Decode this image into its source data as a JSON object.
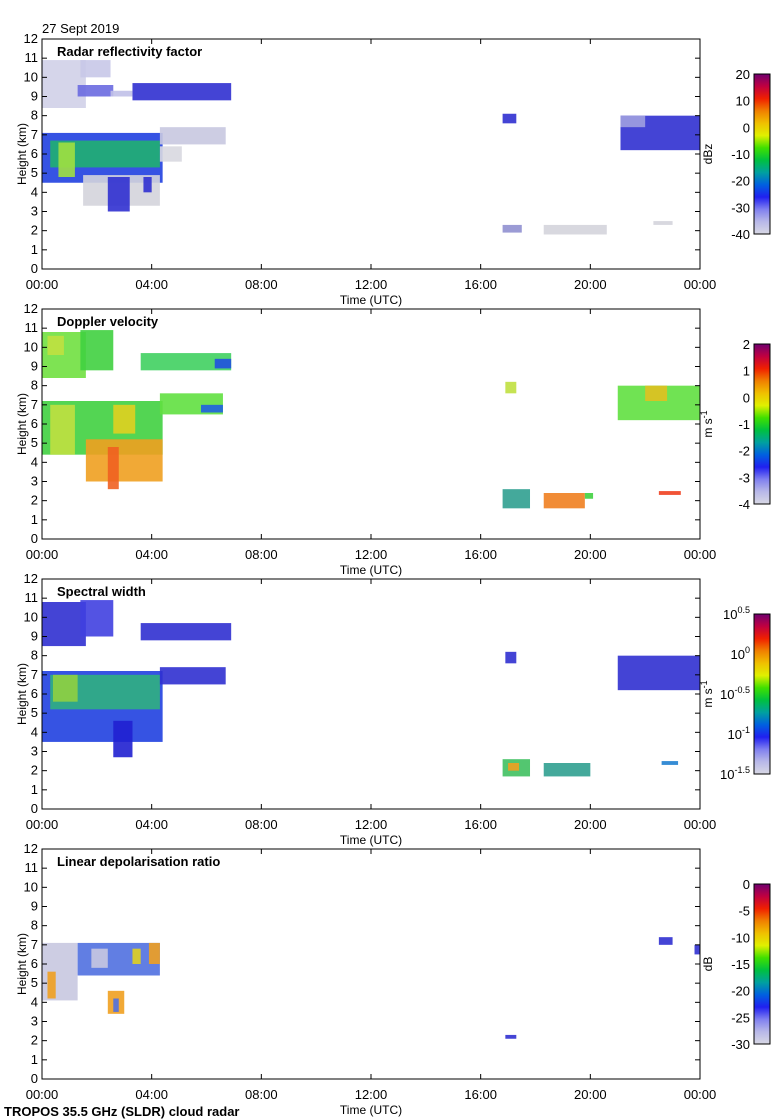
{
  "date": "27 Sept 2019",
  "footer": "TROPOS 35.5 GHz (SLDR) cloud radar",
  "colormap": [
    "#d8d8e4",
    "#b8b8e8",
    "#8080f0",
    "#2020f0",
    "#0060e0",
    "#00a0a0",
    "#00c040",
    "#40e000",
    "#e0f000",
    "#f0c000",
    "#f08000",
    "#f02000",
    "#c00040",
    "#700070"
  ],
  "chart_data": [
    {
      "type": "heatmap",
      "title": "Radar reflectivity factor",
      "xlabel": "Time (UTC)",
      "ylabel": "Height (km)",
      "xlim": [
        0,
        24
      ],
      "ylim": [
        0,
        12
      ],
      "xticks": [
        "00:00",
        "04:00",
        "08:00",
        "12:00",
        "16:00",
        "20:00",
        "00:00"
      ],
      "yticks": [
        "0",
        "1",
        "2",
        "3",
        "4",
        "5",
        "6",
        "7",
        "8",
        "9",
        "10",
        "11",
        "12"
      ],
      "colorbar": {
        "label": {
          "base": "dBz",
          "exp": ""
        },
        "range": [
          -40,
          20
        ],
        "ticks": [
          "20",
          "10",
          "0",
          "-10",
          "-20",
          "-30",
          "-40"
        ]
      },
      "echo_regions": [
        [
          0,
          1.6,
          8.4,
          10.9,
          "#d0d0e8"
        ],
        [
          1.4,
          2.5,
          10,
          10.9,
          "#c8c8e8"
        ],
        [
          1.3,
          2.6,
          9,
          9.6,
          "#6a6ae0"
        ],
        [
          3.3,
          6.9,
          8.8,
          9.7,
          "#3030d0"
        ],
        [
          2.5,
          3.3,
          9,
          9.3,
          "#c0c0e8"
        ],
        [
          0,
          4.4,
          4.5,
          7.1,
          "#2040e0"
        ],
        [
          0.3,
          4.3,
          5.3,
          6.7,
          "#20b070"
        ],
        [
          0.6,
          1.2,
          4.8,
          6.6,
          "#a0e040"
        ],
        [
          1.5,
          4.3,
          3.3,
          4.9,
          "#d4d4dc"
        ],
        [
          2.4,
          3.2,
          3.0,
          4.8,
          "#3030d0"
        ],
        [
          3.7,
          4.0,
          4,
          4.8,
          "#3030d0"
        ],
        [
          4.3,
          6.7,
          6.5,
          7.4,
          "#c8c8e0"
        ],
        [
          4.3,
          5.1,
          5.6,
          6.4,
          "#d8d8e0"
        ],
        [
          16.8,
          17.3,
          7.6,
          8.1,
          "#3030d0"
        ],
        [
          16.8,
          17.5,
          1.9,
          2.3,
          "#9090d0"
        ],
        [
          18.3,
          20.6,
          1.8,
          2.3,
          "#d4d4dc"
        ],
        [
          21.1,
          24,
          6.2,
          8,
          "#3030d0"
        ],
        [
          21.1,
          22,
          7.4,
          8,
          "#a0a0e0"
        ],
        [
          22.3,
          23,
          2.3,
          2.5,
          "#d4d4dc"
        ]
      ]
    },
    {
      "type": "heatmap",
      "title": "Doppler velocity",
      "xlabel": "Time (UTC)",
      "ylabel": "Height (km)",
      "xlim": [
        0,
        24
      ],
      "ylim": [
        0,
        12
      ],
      "xticks": [
        "00:00",
        "04:00",
        "08:00",
        "12:00",
        "16:00",
        "20:00",
        "00:00"
      ],
      "yticks": [
        "0",
        "1",
        "2",
        "3",
        "4",
        "5",
        "6",
        "7",
        "8",
        "9",
        "10",
        "11",
        "12"
      ],
      "colorbar": {
        "label": {
          "base": "m s",
          "exp": "-1"
        },
        "range": [
          -4,
          2
        ],
        "ticks": [
          "2",
          "1",
          "0",
          "-1",
          "-2",
          "-3",
          "-4"
        ]
      },
      "echo_regions": [
        [
          0,
          1.6,
          8.4,
          10.8,
          "#70e040"
        ],
        [
          0.2,
          0.8,
          9.6,
          10.6,
          "#c0e040"
        ],
        [
          1.4,
          2.6,
          8.8,
          10.9,
          "#40d040"
        ],
        [
          3.6,
          6.9,
          8.8,
          9.7,
          "#40d060"
        ],
        [
          6.3,
          6.9,
          8.9,
          9.4,
          "#2050e0"
        ],
        [
          0,
          4.4,
          4.4,
          7.2,
          "#40d040"
        ],
        [
          0.3,
          1.2,
          4.4,
          7.0,
          "#c0e040"
        ],
        [
          2.6,
          3.4,
          5.5,
          7.0,
          "#e0d020"
        ],
        [
          1.6,
          4.4,
          3.0,
          5.2,
          "#f0a020"
        ],
        [
          2.4,
          2.8,
          2.6,
          4.8,
          "#f06020"
        ],
        [
          4.3,
          6.6,
          6.5,
          7.6,
          "#60e040"
        ],
        [
          5.8,
          6.6,
          6.6,
          7.0,
          "#2060e0"
        ],
        [
          16.9,
          17.3,
          7.6,
          8.2,
          "#c0e040"
        ],
        [
          16.8,
          17.8,
          1.6,
          2.6,
          "#30a090"
        ],
        [
          18.3,
          19.8,
          1.6,
          2.4,
          "#f08020"
        ],
        [
          19.8,
          20.1,
          2.1,
          2.4,
          "#40d040"
        ],
        [
          21.0,
          24,
          6.2,
          8.0,
          "#60e040"
        ],
        [
          22.0,
          22.8,
          7.2,
          8.0,
          "#e0c020"
        ],
        [
          22.5,
          23.3,
          2.3,
          2.5,
          "#f04020"
        ]
      ]
    },
    {
      "type": "heatmap",
      "title": "Spectral width",
      "xlabel": "Time (UTC)",
      "ylabel": "Height (km)",
      "xlim": [
        0,
        24
      ],
      "ylim": [
        0,
        12
      ],
      "xticks": [
        "00:00",
        "04:00",
        "08:00",
        "12:00",
        "16:00",
        "20:00",
        "00:00"
      ],
      "yticks": [
        "0",
        "1",
        "2",
        "3",
        "4",
        "5",
        "6",
        "7",
        "8",
        "9",
        "10",
        "11",
        "12"
      ],
      "colorbar": {
        "label": {
          "base": "m s",
          "exp": "-1"
        },
        "range": [
          -1.5,
          0.5
        ],
        "ticks": [
          {
            "base": "10",
            "exp": "0.5"
          },
          {
            "base": "10",
            "exp": "0"
          },
          {
            "base": "10",
            "exp": "-0.5"
          },
          {
            "base": "10",
            "exp": "-1"
          },
          {
            "base": "10",
            "exp": "-1.5"
          }
        ]
      },
      "echo_regions": [
        [
          0,
          1.6,
          8.5,
          10.8,
          "#3030d0"
        ],
        [
          1.4,
          2.6,
          9,
          10.9,
          "#4040e0"
        ],
        [
          3.6,
          6.9,
          8.8,
          9.7,
          "#3030d0"
        ],
        [
          0,
          4.4,
          3.5,
          7.2,
          "#2040e0"
        ],
        [
          0.3,
          4.3,
          5.2,
          7.0,
          "#30b080"
        ],
        [
          0.4,
          1.3,
          5.6,
          7.0,
          "#90d040"
        ],
        [
          2.6,
          3.3,
          2.7,
          4.6,
          "#2020d0"
        ],
        [
          4.3,
          6.7,
          6.5,
          7.4,
          "#3030d0"
        ],
        [
          16.9,
          17.3,
          7.6,
          8.2,
          "#3030d0"
        ],
        [
          16.8,
          17.8,
          1.7,
          2.6,
          "#40c060"
        ],
        [
          17.0,
          17.4,
          2.0,
          2.4,
          "#f0a020"
        ],
        [
          18.3,
          20.0,
          1.7,
          2.4,
          "#30a090"
        ],
        [
          21.0,
          24,
          6.2,
          8.0,
          "#3030d0"
        ],
        [
          22.6,
          23.2,
          2.3,
          2.5,
          "#2080d0"
        ]
      ]
    },
    {
      "type": "heatmap",
      "title": "Linear depolarisation ratio",
      "xlabel": "Time (UTC)",
      "ylabel": "Height (km)",
      "xlim": [
        0,
        24
      ],
      "ylim": [
        0,
        12
      ],
      "xticks": [
        "00:00",
        "04:00",
        "08:00",
        "12:00",
        "16:00",
        "20:00",
        "00:00"
      ],
      "yticks": [
        "0",
        "1",
        "2",
        "3",
        "4",
        "5",
        "6",
        "7",
        "8",
        "9",
        "10",
        "11",
        "12"
      ],
      "colorbar": {
        "label": {
          "base": "dB",
          "exp": ""
        },
        "range": [
          -30,
          0
        ],
        "ticks": [
          "0",
          "-5",
          "-10",
          "-15",
          "-20",
          "-25",
          "-30"
        ]
      },
      "echo_regions": [
        [
          0,
          1.3,
          4.1,
          7.1,
          "#c8c8e0"
        ],
        [
          0.2,
          0.5,
          4.2,
          5.6,
          "#f0a020"
        ],
        [
          1.3,
          4.3,
          5.4,
          7.1,
          "#5070e0"
        ],
        [
          1.8,
          2.4,
          5.8,
          6.8,
          "#c8c8e0"
        ],
        [
          3.3,
          3.6,
          6.0,
          6.8,
          "#e0d020"
        ],
        [
          3.9,
          4.3,
          6.0,
          7.1,
          "#f0a020"
        ],
        [
          2.4,
          3.0,
          3.4,
          4.6,
          "#f0a020"
        ],
        [
          2.6,
          2.8,
          3.5,
          4.2,
          "#5070e0"
        ],
        [
          16.9,
          17.3,
          2.1,
          2.3,
          "#3030d0"
        ],
        [
          22.5,
          23.0,
          7.0,
          7.4,
          "#3030d0"
        ],
        [
          23.8,
          24,
          6.5,
          7.0,
          "#3030d0"
        ]
      ]
    }
  ]
}
